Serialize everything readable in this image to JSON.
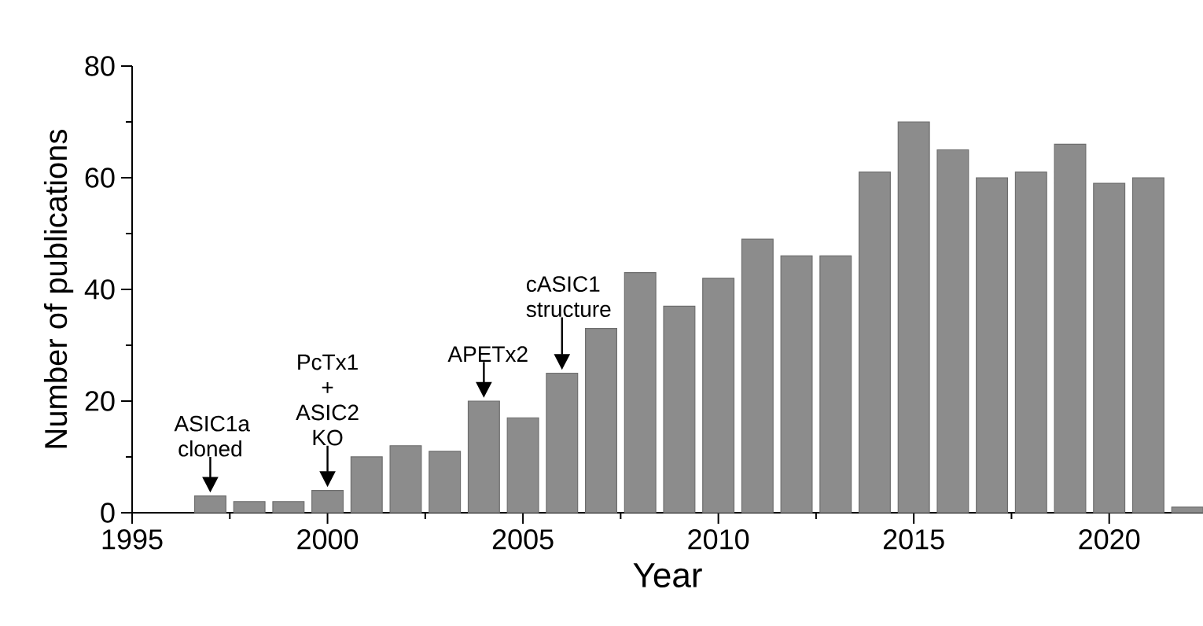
{
  "chart_data": {
    "type": "bar",
    "xlabel": "Year",
    "ylabel": "Number of publications",
    "x": [
      1997,
      1998,
      1999,
      2000,
      2001,
      2002,
      2003,
      2004,
      2005,
      2006,
      2007,
      2008,
      2009,
      2010,
      2011,
      2012,
      2013,
      2014,
      2015,
      2016,
      2017,
      2018,
      2019,
      2020,
      2021,
      2022
    ],
    "values": [
      3,
      2,
      2,
      4,
      10,
      12,
      11,
      20,
      17,
      25,
      33,
      43,
      37,
      42,
      49,
      46,
      46,
      61,
      70,
      65,
      60,
      61,
      66,
      59,
      60,
      1
    ],
    "color": "#8c8c8c",
    "xlim": [
      1995,
      2022.4
    ],
    "ylim": [
      0,
      80
    ],
    "xticks": [
      1995,
      2000,
      2005,
      2010,
      2015,
      2020
    ],
    "yticks": [
      0,
      20,
      40,
      60,
      80
    ],
    "annotations": [
      {
        "text": "ASIC1a cloned",
        "x": 1997,
        "y": 3
      },
      {
        "text": "PcTx1 + ASIC2 KO",
        "x": 2000,
        "y": 4
      },
      {
        "text": "APETx2",
        "x": 2004,
        "y": 20
      },
      {
        "text": "cASIC1 structure",
        "x": 2006,
        "y": 25
      }
    ]
  }
}
